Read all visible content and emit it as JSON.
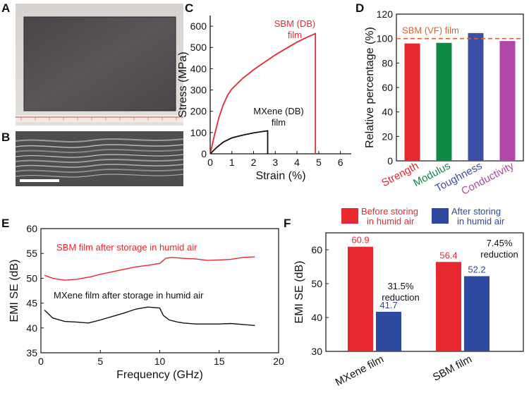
{
  "panel_letters": {
    "a": "A",
    "b": "B",
    "c": "C",
    "d": "D",
    "e": "E",
    "f": "F"
  },
  "colors": {
    "red": "#e8282f",
    "black": "#111111",
    "blue": "#2e4aa0",
    "green": "#0d8a43",
    "navy": "#3b4ea6",
    "magenta": "#b048a8",
    "orange_dash": "#d9622b"
  },
  "chart_data": [
    {
      "panel": "A",
      "type": "other",
      "description_visible": "photograph of film on ruler"
    },
    {
      "panel": "C",
      "type": "line",
      "xlabel": "Strain (%)",
      "ylabel": "Stress (MPa)",
      "xlim": [
        0,
        6.5
      ],
      "ylim": [
        0,
        650
      ],
      "xticks": [
        0,
        1,
        2,
        3,
        4,
        5,
        6
      ],
      "yticks": [
        0,
        100,
        200,
        300,
        400,
        500,
        600
      ],
      "series": [
        {
          "name": "SBM (DB) film",
          "color": "#e8282f",
          "x": [
            0,
            0.2,
            0.4,
            0.6,
            0.8,
            1.0,
            1.5,
            2.0,
            2.5,
            3.0,
            3.5,
            4.0,
            4.5,
            4.85,
            4.85
          ],
          "y": [
            0,
            90,
            170,
            230,
            275,
            305,
            355,
            395,
            430,
            465,
            495,
            525,
            550,
            565,
            0
          ]
        },
        {
          "name": "MXene (DB) film",
          "color": "#111111",
          "x": [
            0,
            0.3,
            0.6,
            1.0,
            1.5,
            2.0,
            2.5,
            2.65,
            2.65
          ],
          "y": [
            0,
            30,
            55,
            75,
            88,
            98,
            106,
            108,
            0
          ]
        }
      ],
      "annotations": [
        {
          "text_line1": "SBM (DB)",
          "text_line2": "film",
          "color": "#e8282f"
        },
        {
          "text_line1": "MXene (DB)",
          "text_line2": "film",
          "color": "#111111"
        }
      ]
    },
    {
      "panel": "D",
      "type": "bar",
      "ylabel": "Relative percentage (%)",
      "ylim": [
        0,
        120
      ],
      "yticks": [
        0,
        20,
        40,
        60,
        80,
        100,
        120
      ],
      "categories": [
        "Strength",
        "Modulus",
        "Toughness",
        "Conductivity"
      ],
      "values": [
        96,
        96.5,
        104.5,
        98
      ],
      "bar_colors": [
        "#e8282f",
        "#0d8a43",
        "#3b4ea6",
        "#b048a8"
      ],
      "reference_line": {
        "value": 100,
        "label": "SBM (VF) film",
        "color": "#d9622b"
      }
    },
    {
      "panel": "E",
      "type": "line",
      "xlabel": "Frequency (GHz)",
      "ylabel": "EMI SE (dB)",
      "xlim": [
        0,
        20
      ],
      "ylim": [
        35,
        60
      ],
      "xticks": [
        0,
        5,
        10,
        15,
        20
      ],
      "yticks": [
        35,
        40,
        45,
        50,
        55,
        60
      ],
      "series": [
        {
          "name": "SBM film after storage in humid air",
          "color": "#e8282f",
          "x": [
            0.3,
            1,
            2,
            3,
            4,
            5,
            6,
            7,
            8,
            9,
            10,
            10.5,
            11,
            12,
            13,
            14,
            15,
            16,
            17,
            18
          ],
          "y": [
            50.6,
            50.0,
            49.6,
            49.8,
            50.2,
            50.8,
            51.3,
            51.8,
            52.3,
            52.6,
            53.0,
            54.0,
            54.2,
            54.0,
            53.9,
            53.6,
            53.7,
            53.8,
            54.2,
            54.3
          ]
        },
        {
          "name": "MXene film after storage in humid air",
          "color": "#111111",
          "x": [
            0.3,
            1,
            2,
            3,
            4,
            5,
            6,
            7,
            8,
            9,
            10,
            10.3,
            10.8,
            11.5,
            12,
            13,
            14,
            15,
            16,
            17,
            18
          ],
          "y": [
            43.6,
            42.0,
            41.3,
            41.2,
            41.0,
            41.6,
            42.3,
            43.0,
            43.8,
            44.2,
            44.0,
            42.5,
            41.6,
            41.2,
            41.0,
            40.8,
            40.8,
            40.8,
            40.9,
            40.7,
            40.5
          ]
        }
      ]
    },
    {
      "panel": "F",
      "type": "bar",
      "ylabel": "EMI SE (dB)",
      "ylim": [
        30,
        65
      ],
      "yticks": [
        30,
        40,
        50,
        60
      ],
      "categories": [
        "MXene film",
        "SBM film"
      ],
      "series": [
        {
          "name_line1": "Before storing",
          "name_line2": "in humid air",
          "color": "#e8282f",
          "values": [
            60.9,
            56.4
          ],
          "labels": [
            "60.9",
            "56.4"
          ]
        },
        {
          "name_line1": "After storing",
          "name_line2": "in humid air",
          "color": "#2e4aa0",
          "values": [
            41.7,
            52.2
          ],
          "labels": [
            "41.7",
            "52.2"
          ]
        }
      ],
      "annotations": [
        {
          "line1": "31.5%",
          "line2": "reduction"
        },
        {
          "line1": "7.45%",
          "line2": "reduction"
        }
      ]
    }
  ]
}
